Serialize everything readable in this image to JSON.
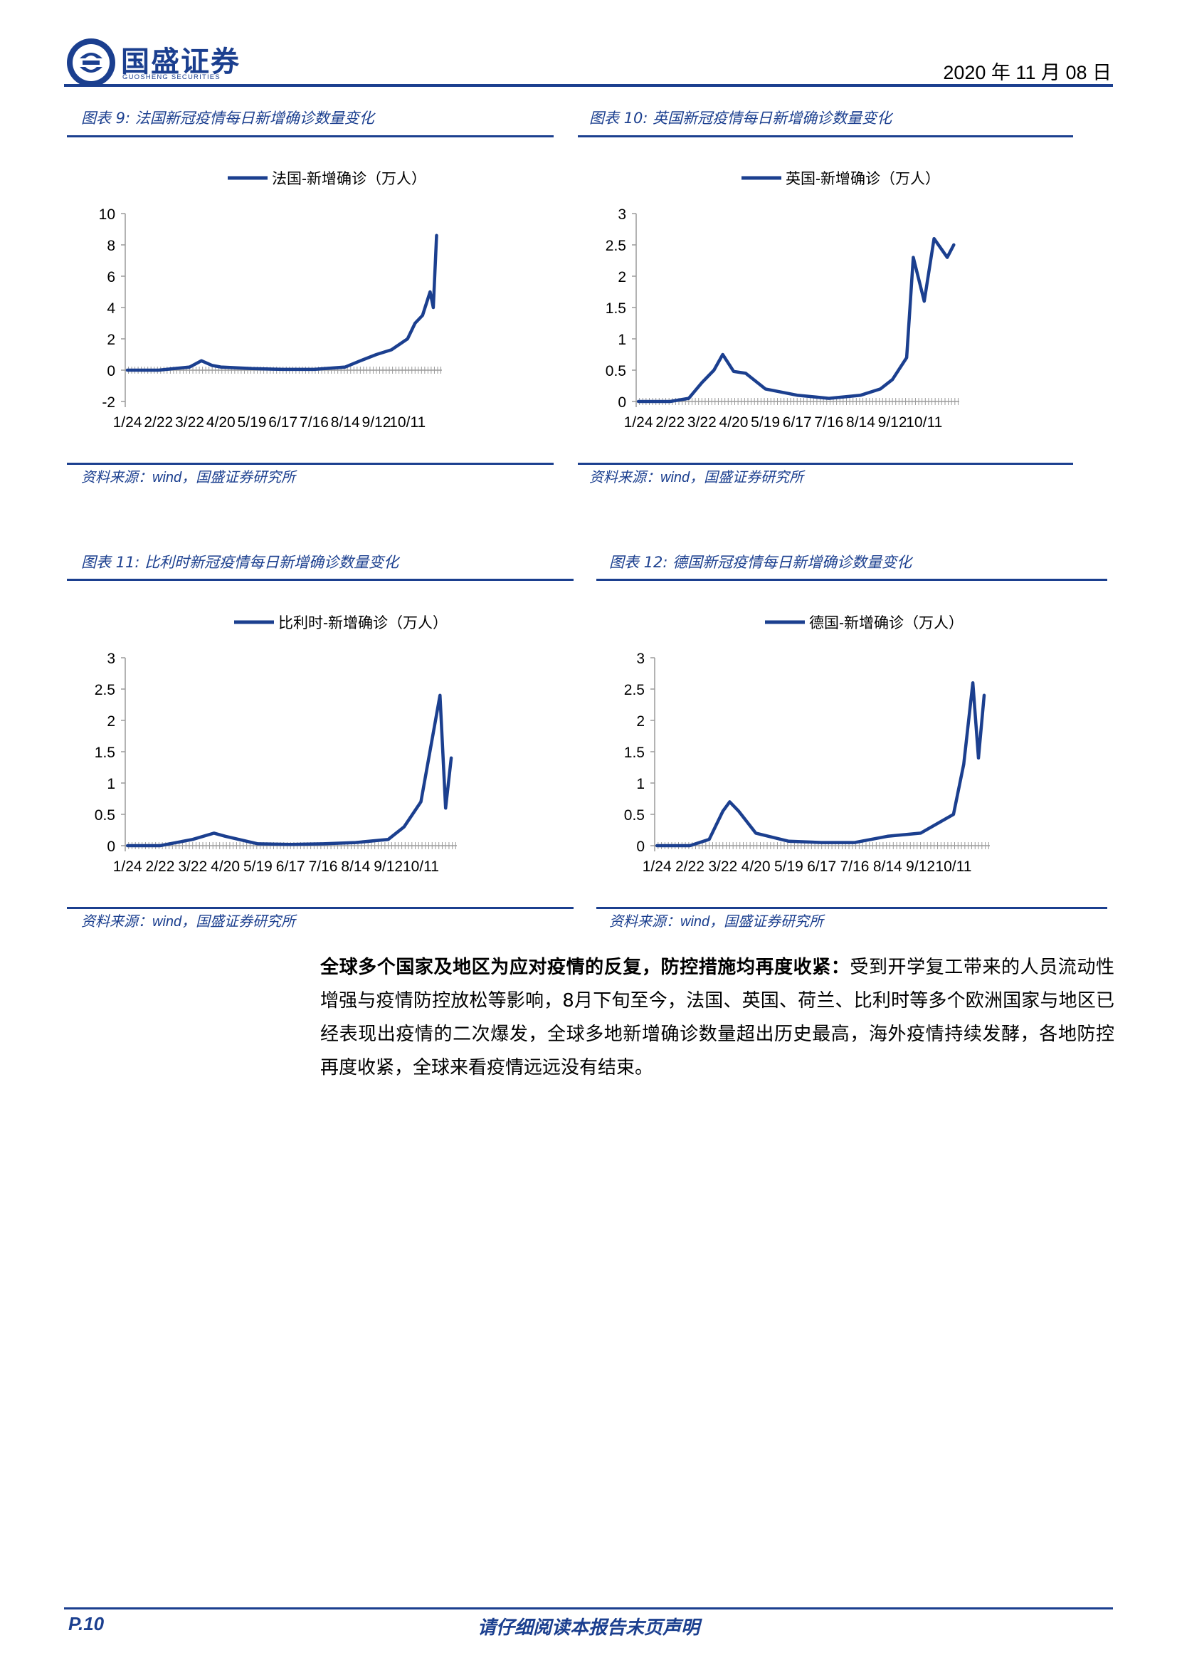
{
  "header": {
    "logo_cn": "国盛证券",
    "logo_en": "GUOSHENG SECURITIES",
    "date": "2020 年 11 月 08 日",
    "brand_color": "#1b3f8f"
  },
  "charts": [
    {
      "title": "图表 9:  法国新冠疫情每日新增确诊数量变化",
      "source_prefix": "资料来源：",
      "source_wind": "wind",
      "source_suffix": "，国盛证券研究所"
    },
    {
      "title": "图表 10:  英国新冠疫情每日新增确诊数量变化",
      "source_prefix": "资料来源：",
      "source_wind": "wind",
      "source_suffix": "，国盛证券研究所"
    },
    {
      "title": "图表 11:  比利时新冠疫情每日新增确诊数量变化",
      "source_prefix": "资料来源：",
      "source_wind": "wind",
      "source_suffix": "，国盛证券研究所"
    },
    {
      "title": "图表 12:  德国新冠疫情每日新增确诊数量变化",
      "source_prefix": "资料来源：",
      "source_wind": "wind",
      "source_suffix": "，国盛证券研究所"
    }
  ],
  "chart_data": [
    {
      "type": "line",
      "legend": "法国-新增确诊（万人）",
      "line_color": "#1b3f8f",
      "x_ticks": [
        "1/24",
        "2/22",
        "3/22",
        "4/20",
        "5/19",
        "6/17",
        "7/16",
        "8/14",
        "9/12",
        "10/11"
      ],
      "y_ticks": [
        10,
        8,
        6,
        4,
        2,
        0,
        -2
      ],
      "ylim": [
        -2,
        10
      ],
      "x": [
        "1/24",
        "2/22",
        "3/22",
        "4/2",
        "4/12",
        "4/20",
        "5/19",
        "6/17",
        "7/16",
        "8/14",
        "8/28",
        "9/12",
        "9/26",
        "10/11",
        "10/18",
        "10/25",
        "11/1",
        "11/4",
        "11/7"
      ],
      "y": [
        0,
        0,
        0.2,
        0.6,
        0.3,
        0.2,
        0.1,
        0.05,
        0.05,
        0.2,
        0.6,
        1.0,
        1.3,
        2.0,
        3.0,
        3.5,
        5.0,
        4.0,
        8.6
      ]
    },
    {
      "type": "line",
      "legend": "英国-新增确诊（万人）",
      "line_color": "#1b3f8f",
      "x_ticks": [
        "1/24",
        "2/22",
        "3/22",
        "4/20",
        "5/19",
        "6/17",
        "7/16",
        "8/14",
        "9/12",
        "10/11"
      ],
      "y_ticks": [
        3,
        2.5,
        2,
        1.5,
        1,
        0.5,
        0
      ],
      "ylim": [
        0,
        3
      ],
      "x": [
        "1/24",
        "2/22",
        "3/10",
        "3/22",
        "4/2",
        "4/10",
        "4/20",
        "5/1",
        "5/19",
        "6/17",
        "7/16",
        "8/14",
        "9/1",
        "9/12",
        "9/25",
        "10/1",
        "10/11",
        "10/20",
        "11/1",
        "11/7"
      ],
      "y": [
        0,
        0,
        0.05,
        0.3,
        0.5,
        0.75,
        0.48,
        0.45,
        0.2,
        0.1,
        0.05,
        0.1,
        0.2,
        0.35,
        0.7,
        2.3,
        1.6,
        2.6,
        2.3,
        2.5
      ]
    },
    {
      "type": "line",
      "legend": "比利时-新增确诊（万人）",
      "line_color": "#1b3f8f",
      "x_ticks": [
        "1/24",
        "2/22",
        "3/22",
        "4/20",
        "5/19",
        "6/17",
        "7/16",
        "8/14",
        "9/12",
        "10/11"
      ],
      "y_ticks": [
        3,
        2.5,
        2,
        1.5,
        1,
        0.5,
        0
      ],
      "ylim": [
        0,
        3
      ],
      "x": [
        "1/24",
        "2/22",
        "3/22",
        "4/10",
        "4/20",
        "5/19",
        "6/17",
        "7/16",
        "8/14",
        "9/12",
        "9/26",
        "10/11",
        "10/20",
        "10/28",
        "11/2",
        "11/7"
      ],
      "y": [
        0,
        0,
        0.1,
        0.2,
        0.15,
        0.03,
        0.02,
        0.03,
        0.05,
        0.1,
        0.3,
        0.7,
        1.6,
        2.4,
        0.6,
        1.4
      ]
    },
    {
      "type": "line",
      "legend": "德国-新增确诊（万人）",
      "line_color": "#1b3f8f",
      "x_ticks": [
        "1/24",
        "2/22",
        "3/22",
        "4/20",
        "5/19",
        "6/17",
        "7/16",
        "8/14",
        "9/12",
        "10/11"
      ],
      "y_ticks": [
        3,
        2.5,
        2,
        1.5,
        1,
        0.5,
        0
      ],
      "ylim": [
        0,
        3
      ],
      "x": [
        "1/24",
        "2/22",
        "3/10",
        "3/22",
        "3/28",
        "4/5",
        "4/20",
        "5/19",
        "6/17",
        "7/16",
        "8/14",
        "9/12",
        "10/11",
        "10/20",
        "10/28",
        "11/2",
        "11/7"
      ],
      "y": [
        0,
        0,
        0.1,
        0.55,
        0.7,
        0.55,
        0.2,
        0.07,
        0.05,
        0.05,
        0.15,
        0.2,
        0.5,
        1.3,
        2.6,
        1.4,
        2.4
      ]
    }
  ],
  "paragraph": {
    "bold": "全球多个国家及地区为应对疫情的反复，防控措施均再度收紧：",
    "text": "受到开学复工带来的人员流动性增强与疫情防控放松等影响，8月下旬至今，法国、英国、荷兰、比利时等多个欧洲国家与地区已经表现出疫情的二次爆发，全球多地新增确诊数量超出历史最高，海外疫情持续发酵，各地防控再度收紧，全球来看疫情远远没有结束。"
  },
  "footer": {
    "page": "P.10",
    "disclaimer": "请仔细阅读本报告末页声明"
  }
}
